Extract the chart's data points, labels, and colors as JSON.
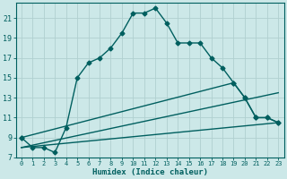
{
  "xlabel": "Humidex (Indice chaleur)",
  "bg_color": "#cce8e8",
  "grid_color": "#b0d0d0",
  "line_color": "#005f5f",
  "xlim": [
    -0.5,
    23.5
  ],
  "ylim": [
    7,
    22.5
  ],
  "yticks": [
    7,
    9,
    11,
    13,
    15,
    17,
    19,
    21
  ],
  "xticks": [
    0,
    1,
    2,
    3,
    4,
    5,
    6,
    7,
    8,
    9,
    10,
    11,
    12,
    13,
    14,
    15,
    16,
    17,
    18,
    19,
    20,
    21,
    22,
    23
  ],
  "line1_x": [
    0,
    1,
    2,
    3,
    4,
    5,
    6,
    7,
    8,
    9,
    10,
    11,
    12,
    13,
    14,
    15,
    16,
    17,
    18,
    19,
    20,
    21,
    22,
    23
  ],
  "line1_y": [
    9,
    8,
    8,
    7.5,
    10,
    15,
    16.5,
    17,
    18,
    19.5,
    21.5,
    21.5,
    22,
    20.5,
    18.5,
    18.5,
    18.5,
    17,
    16,
    14.5,
    13,
    11,
    11,
    10.5
  ],
  "line2_x": [
    0,
    19,
    20,
    21,
    22,
    23
  ],
  "line2_y": [
    9,
    14.5,
    13,
    11,
    11,
    10.5
  ],
  "line3_x": [
    0,
    23
  ],
  "line3_y": [
    8,
    13.5
  ],
  "line4_x": [
    0,
    23
  ],
  "line4_y": [
    8,
    10.5
  ],
  "marker_size": 2.5,
  "linewidth": 1.0
}
